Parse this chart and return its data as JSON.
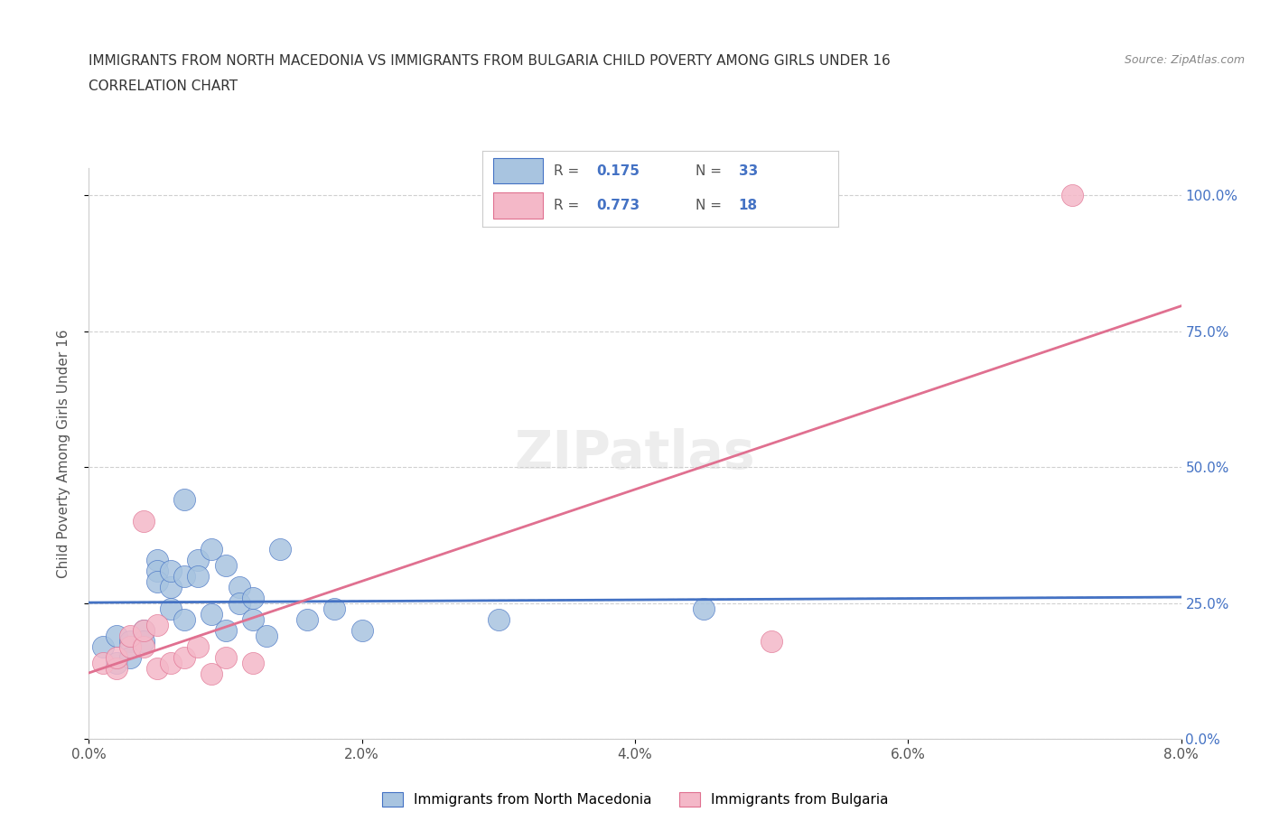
{
  "title_line1": "IMMIGRANTS FROM NORTH MACEDONIA VS IMMIGRANTS FROM BULGARIA CHILD POVERTY AMONG GIRLS UNDER 16",
  "title_line2": "CORRELATION CHART",
  "source": "Source: ZipAtlas.com",
  "xlabel": "",
  "ylabel": "Child Poverty Among Girls Under 16",
  "xlim": [
    0.0,
    0.08
  ],
  "ylim": [
    0.0,
    1.05
  ],
  "xtick_labels": [
    "0.0%",
    "2.0%",
    "4.0%",
    "6.0%",
    "8.0%"
  ],
  "xtick_values": [
    0.0,
    0.02,
    0.04,
    0.06,
    0.08
  ],
  "ytick_labels": [
    "0.0%",
    "25.0%",
    "50.0%",
    "75.0%",
    "100.0%"
  ],
  "ytick_values": [
    0.0,
    0.25,
    0.5,
    0.75,
    1.0
  ],
  "R_mac": 0.175,
  "N_mac": 33,
  "R_bul": 0.773,
  "N_bul": 18,
  "color_mac": "#a8c4e0",
  "color_mac_line": "#4472c4",
  "color_bul": "#f4b8c8",
  "color_bul_line": "#e07090",
  "color_dashed": "#a0a0a0",
  "watermark": "ZIPatlas",
  "legend_text_color": "#4472c4",
  "scatter_mac": [
    [
      0.001,
      0.17
    ],
    [
      0.002,
      0.19
    ],
    [
      0.002,
      0.14
    ],
    [
      0.003,
      0.18
    ],
    [
      0.003,
      0.15
    ],
    [
      0.004,
      0.2
    ],
    [
      0.004,
      0.18
    ],
    [
      0.005,
      0.33
    ],
    [
      0.005,
      0.31
    ],
    [
      0.005,
      0.29
    ],
    [
      0.006,
      0.28
    ],
    [
      0.006,
      0.31
    ],
    [
      0.006,
      0.24
    ],
    [
      0.007,
      0.44
    ],
    [
      0.007,
      0.22
    ],
    [
      0.007,
      0.3
    ],
    [
      0.008,
      0.33
    ],
    [
      0.008,
      0.3
    ],
    [
      0.009,
      0.35
    ],
    [
      0.009,
      0.23
    ],
    [
      0.01,
      0.32
    ],
    [
      0.01,
      0.2
    ],
    [
      0.011,
      0.28
    ],
    [
      0.011,
      0.25
    ],
    [
      0.012,
      0.26
    ],
    [
      0.012,
      0.22
    ],
    [
      0.013,
      0.19
    ],
    [
      0.014,
      0.35
    ],
    [
      0.016,
      0.22
    ],
    [
      0.018,
      0.24
    ],
    [
      0.02,
      0.2
    ],
    [
      0.03,
      0.22
    ],
    [
      0.045,
      0.24
    ]
  ],
  "scatter_bul": [
    [
      0.001,
      0.14
    ],
    [
      0.002,
      0.13
    ],
    [
      0.002,
      0.15
    ],
    [
      0.003,
      0.17
    ],
    [
      0.003,
      0.19
    ],
    [
      0.004,
      0.17
    ],
    [
      0.004,
      0.2
    ],
    [
      0.004,
      0.4
    ],
    [
      0.005,
      0.21
    ],
    [
      0.005,
      0.13
    ],
    [
      0.006,
      0.14
    ],
    [
      0.007,
      0.15
    ],
    [
      0.008,
      0.17
    ],
    [
      0.009,
      0.12
    ],
    [
      0.01,
      0.15
    ],
    [
      0.012,
      0.14
    ],
    [
      0.05,
      0.18
    ],
    [
      0.072,
      1.0
    ]
  ],
  "grid_color": "#d0d0d0",
  "background_color": "#ffffff",
  "fig_bg_color": "#ffffff"
}
